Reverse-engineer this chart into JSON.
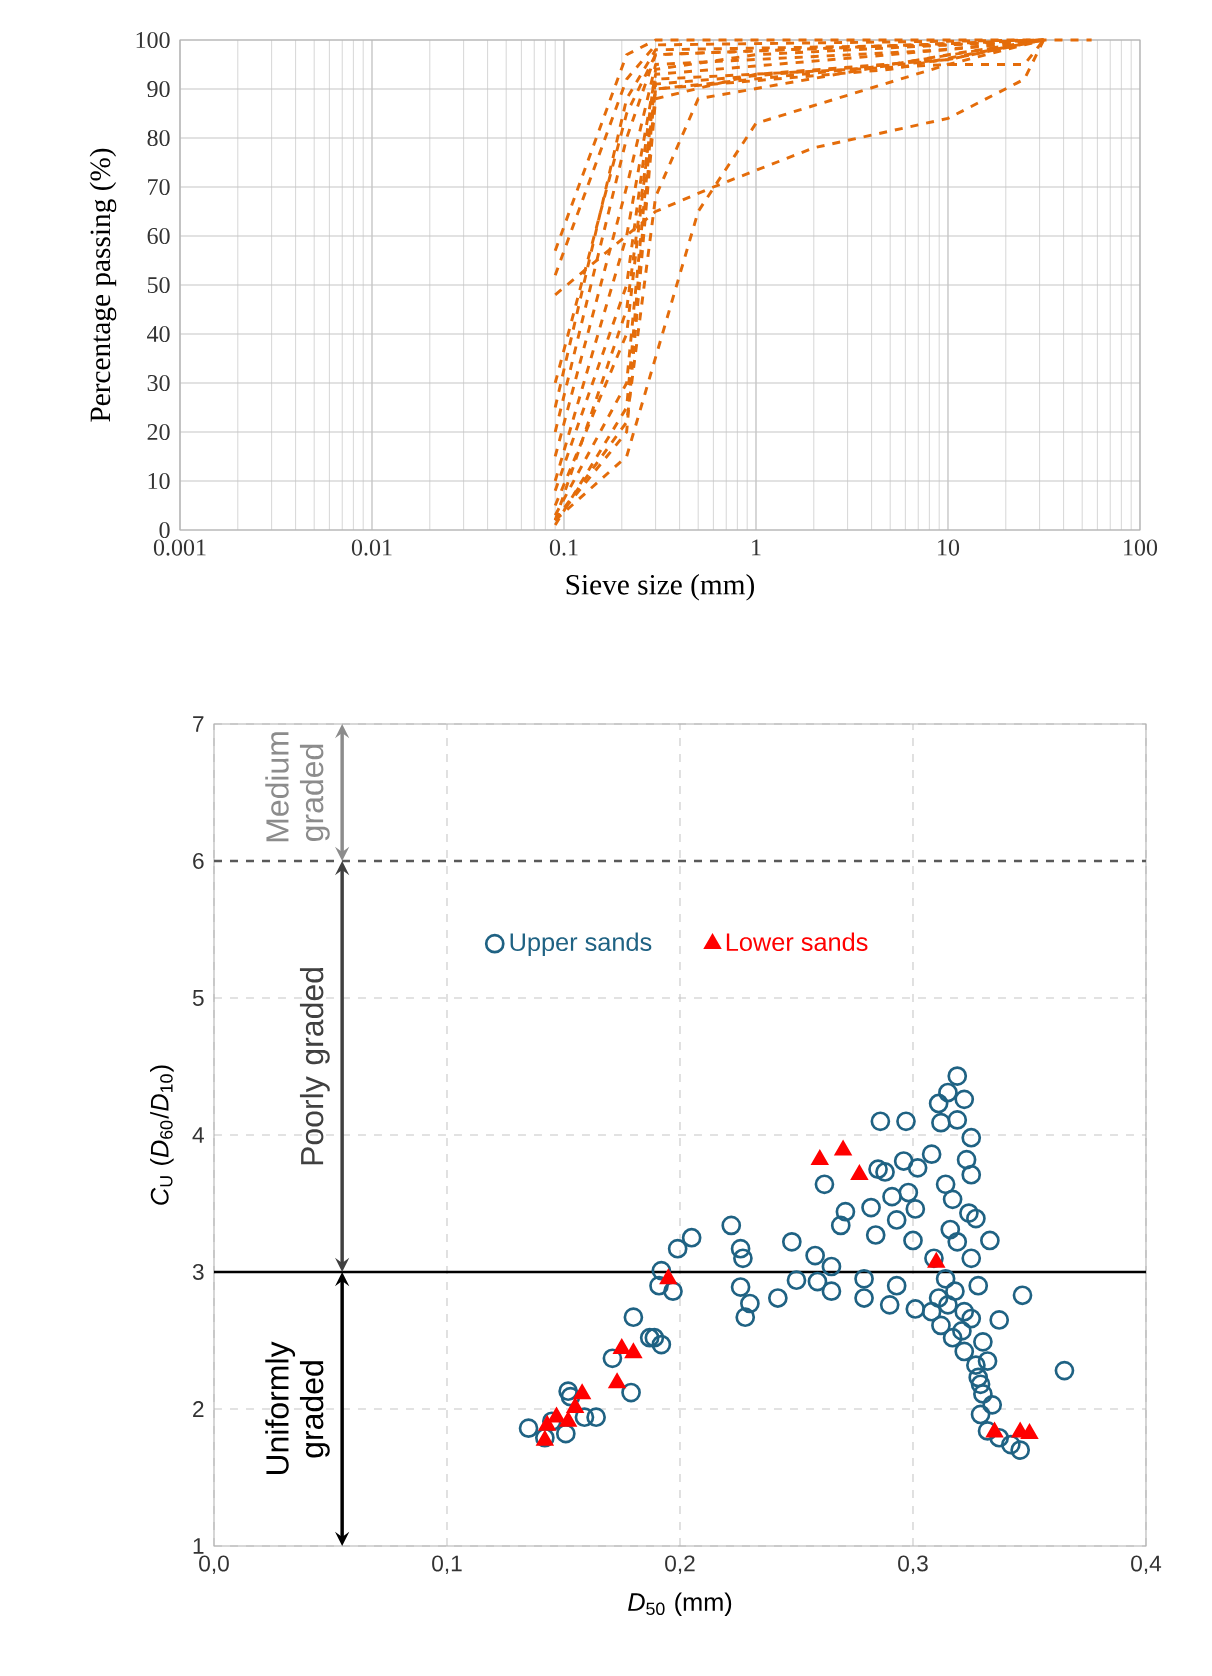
{
  "chart_data": [
    {
      "type": "line",
      "xlabel": "Sieve size (mm)",
      "ylabel": "Percentage passing (%)",
      "log": "x",
      "grid": true,
      "line_style": "dashed",
      "xlim": [
        0.001,
        100
      ],
      "ylim": [
        0,
        100
      ],
      "xticks": [
        0.001,
        0.01,
        0.1,
        1,
        10,
        100
      ],
      "yticks": [
        0,
        10,
        20,
        30,
        40,
        50,
        60,
        70,
        80,
        90,
        100
      ],
      "series": [
        {
          "color": "#e46c0a",
          "x": [
            0.09,
            0.212,
            0.5,
            1,
            10,
            31.5
          ],
          "values": [
            2,
            15,
            65,
            83,
            95,
            100
          ]
        },
        {
          "color": "#e46c0a",
          "x": [
            0.09,
            0.3,
            0.6,
            2,
            10,
            25,
            31.5
          ],
          "values": [
            48,
            65,
            70,
            78,
            84,
            92,
            100
          ]
        },
        {
          "color": "#e46c0a",
          "x": [
            0.09,
            0.212,
            0.3,
            0.5,
            10,
            31.5
          ],
          "values": [
            2,
            22,
            68,
            88,
            97,
            100
          ]
        },
        {
          "color": "#e46c0a",
          "x": [
            0.09,
            0.212,
            0.3,
            56
          ],
          "values": [
            57,
            97,
            100,
            100
          ]
        },
        {
          "color": "#e46c0a",
          "x": [
            0.09,
            0.212,
            0.3,
            31.5
          ],
          "values": [
            52,
            92,
            99,
            100
          ]
        },
        {
          "color": "#e46c0a",
          "x": [
            0.09,
            0.212,
            0.3,
            10,
            31.5
          ],
          "values": [
            25,
            88,
            98,
            99,
            100
          ]
        },
        {
          "color": "#e46c0a",
          "x": [
            0.09,
            0.212,
            0.3,
            31.5
          ],
          "values": [
            20,
            80,
            97,
            100
          ]
        },
        {
          "color": "#e46c0a",
          "x": [
            0.09,
            0.212,
            0.3,
            10,
            31.5
          ],
          "values": [
            15,
            70,
            95,
            98,
            100
          ]
        },
        {
          "color": "#e46c0a",
          "x": [
            0.09,
            0.212,
            0.3,
            5,
            31.5
          ],
          "values": [
            10,
            60,
            93,
            97,
            100
          ]
        },
        {
          "color": "#e46c0a",
          "x": [
            0.09,
            0.212,
            0.3,
            10,
            25,
            31.5
          ],
          "values": [
            5,
            40,
            92,
            95,
            95,
            100
          ]
        },
        {
          "color": "#e46c0a",
          "x": [
            0.09,
            0.212,
            0.3,
            5,
            31.5
          ],
          "values": [
            3,
            30,
            91,
            95,
            100
          ]
        },
        {
          "color": "#e46c0a",
          "x": [
            0.09,
            0.212,
            0.3,
            10,
            31.5
          ],
          "values": [
            2,
            45,
            90,
            96,
            100
          ]
        },
        {
          "color": "#e46c0a",
          "x": [
            0.09,
            0.212,
            0.3,
            5,
            31.5
          ],
          "values": [
            1,
            25,
            90,
            94,
            100
          ]
        },
        {
          "color": "#e46c0a",
          "x": [
            0.09,
            0.212,
            0.3,
            1,
            10,
            31.5
          ],
          "values": [
            2,
            20,
            88,
            93,
            96,
            100
          ]
        },
        {
          "color": "#e46c0a",
          "x": [
            0.09,
            0.212,
            0.3,
            1,
            31.5
          ],
          "values": [
            8,
            50,
            94,
            97,
            100
          ]
        },
        {
          "color": "#e46c0a",
          "x": [
            0.09,
            0.212,
            0.3,
            31.5
          ],
          "values": [
            30,
            85,
            97,
            100
          ]
        }
      ]
    },
    {
      "type": "scatter",
      "xlabel": "*D*$_{50}$ (mm)",
      "ylabel": "*C*$_{U}$ (*D*$_{60}$/*D*$_{10}$)",
      "grid": true,
      "legend": "top",
      "xlim": [
        0,
        0.4
      ],
      "ylim": [
        1,
        7
      ],
      "xticks": [
        {
          "value": 0,
          "label": "0,0"
        },
        {
          "value": 0.1,
          "label": "0,1"
        },
        {
          "value": 0.2,
          "label": "0,2"
        },
        {
          "value": 0.3,
          "label": "0,3"
        },
        {
          "value": 0.4,
          "label": "0,4"
        }
      ],
      "yticks": [
        1,
        2,
        3,
        4,
        5,
        6,
        7
      ],
      "ref_lines": [
        {
          "axis": "y",
          "value": 6,
          "color": "#595959",
          "line_style": "dashed"
        },
        {
          "axis": "y",
          "value": 3,
          "color": "#000000",
          "line_style": "solid"
        }
      ],
      "annotations": [
        "Medium graded",
        "Poorly graded",
        "Uniformly graded"
      ],
      "series": [
        {
          "name": "Upper sands",
          "color": "#1f6283",
          "marker": "circle",
          "x": [
            0.135,
            0.142,
            0.145,
            0.152,
            0.153,
            0.151,
            0.159,
            0.164,
            0.171,
            0.179,
            0.18,
            0.187,
            0.189,
            0.192,
            0.191,
            0.192,
            0.197,
            0.199,
            0.205,
            0.222,
            0.226,
            0.227,
            0.226,
            0.23,
            0.228,
            0.242,
            0.248,
            0.25,
            0.258,
            0.259,
            0.265,
            0.265,
            0.262,
            0.269,
            0.271,
            0.279,
            0.279,
            0.282,
            0.284,
            0.285,
            0.286,
            0.288,
            0.29,
            0.291,
            0.293,
            0.293,
            0.296,
            0.297,
            0.298,
            0.301,
            0.3,
            0.302,
            0.308,
            0.301,
            0.309,
            0.311,
            0.312,
            0.315,
            0.319,
            0.322,
            0.319,
            0.325,
            0.323,
            0.325,
            0.314,
            0.317,
            0.316,
            0.324,
            0.327,
            0.333,
            0.319,
            0.325,
            0.308,
            0.312,
            0.317,
            0.322,
            0.328,
            0.318,
            0.314,
            0.33,
            0.337,
            0.322,
            0.327,
            0.332,
            0.328,
            0.33,
            0.329,
            0.332,
            0.337,
            0.342,
            0.346,
            0.347,
            0.365,
            0.311,
            0.315,
            0.321,
            0.325,
            0.329,
            0.334
          ],
          "values": [
            1.86,
            1.79,
            1.91,
            2.13,
            2.09,
            1.82,
            1.94,
            1.94,
            2.37,
            2.12,
            2.67,
            2.52,
            2.52,
            2.47,
            2.9,
            3.01,
            2.86,
            3.17,
            3.25,
            3.34,
            3.17,
            3.1,
            2.89,
            2.77,
            2.67,
            2.81,
            3.22,
            2.94,
            3.12,
            2.93,
            2.86,
            3.04,
            3.64,
            3.34,
            3.44,
            2.95,
            2.81,
            3.47,
            3.27,
            3.75,
            4.1,
            3.73,
            2.76,
            3.55,
            2.9,
            3.38,
            3.81,
            4.1,
            3.58,
            3.46,
            3.23,
            3.76,
            3.86,
            2.73,
            3.1,
            4.23,
            4.09,
            4.31,
            4.43,
            4.26,
            4.11,
            3.98,
            3.82,
            3.71,
            3.64,
            3.53,
            3.31,
            3.43,
            3.39,
            3.23,
            3.22,
            3.1,
            2.71,
            2.61,
            2.52,
            2.71,
            2.9,
            2.86,
            2.95,
            2.49,
            2.65,
            2.42,
            2.32,
            2.35,
            2.23,
            2.11,
            1.96,
            1.84,
            1.79,
            1.74,
            1.7,
            2.83,
            2.28,
            2.81,
            2.76,
            2.57,
            2.66,
            2.18,
            2.03
          ]
        },
        {
          "name": "Lower sands",
          "color": "#ff0000",
          "marker": "triangle",
          "x": [
            0.142,
            0.143,
            0.147,
            0.152,
            0.155,
            0.158,
            0.173,
            0.175,
            0.18,
            0.195,
            0.26,
            0.27,
            0.277,
            0.31,
            0.335,
            0.346,
            0.35
          ],
          "values": [
            1.77,
            1.88,
            1.94,
            1.91,
            2.01,
            2.11,
            2.19,
            2.44,
            2.41,
            2.95,
            3.82,
            3.89,
            3.71,
            3.07,
            1.83,
            1.83,
            1.82
          ]
        }
      ]
    }
  ]
}
